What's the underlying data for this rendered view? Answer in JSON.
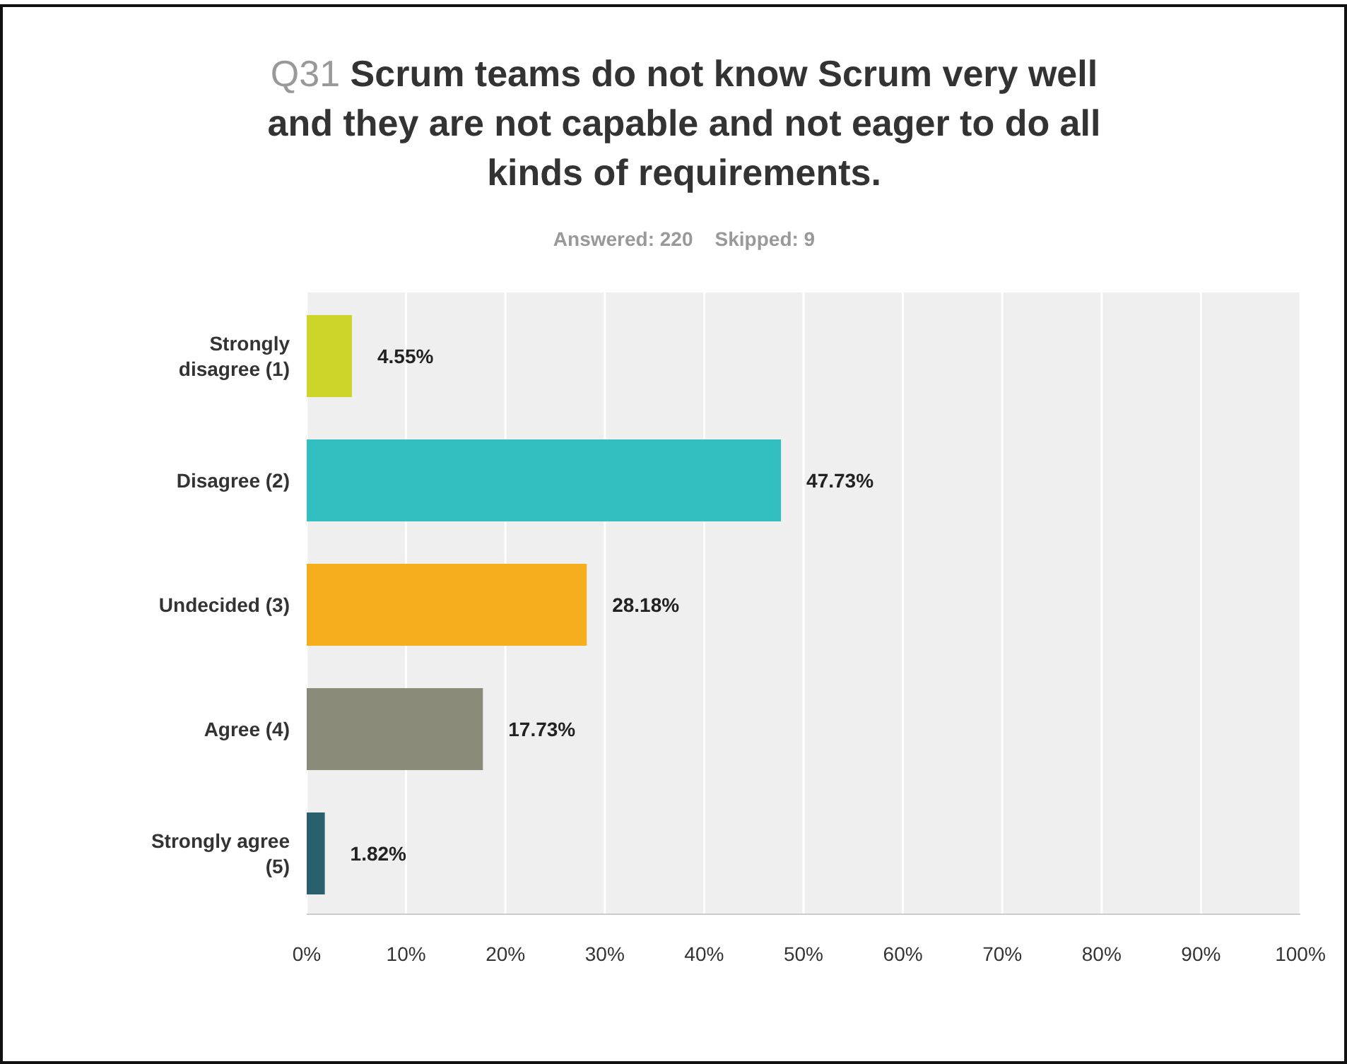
{
  "chart_data": {
    "type": "bar",
    "orientation": "horizontal",
    "title": "Q31 Scrum teams do not know Scrum very well and they are not capable and not eager to do all kinds of requirements.",
    "subtitle": "Answered: 220    Skipped: 9",
    "categories": [
      "Strongly disagree (1)",
      "Disagree (2)",
      "Undecided (3)",
      "Agree (4)",
      "Strongly agree (5)"
    ],
    "values": [
      4.55,
      47.73,
      28.18,
      17.73,
      1.82
    ],
    "value_labels": [
      "4.55%",
      "47.73%",
      "28.18%",
      "17.73%",
      "1.82%"
    ],
    "colors": [
      "#cdd42a",
      "#33bfbf",
      "#f7ae1e",
      "#8a8b78",
      "#2a5f6e"
    ],
    "xlim": [
      0,
      100
    ],
    "xticks": [
      {
        "value": 0,
        "label": "0%"
      },
      {
        "value": 10,
        "label": "10%"
      },
      {
        "value": 20,
        "label": "20%"
      },
      {
        "value": 30,
        "label": "30%"
      },
      {
        "value": 40,
        "label": "40%"
      },
      {
        "value": 50,
        "label": "50%"
      },
      {
        "value": 60,
        "label": "60%"
      },
      {
        "value": 70,
        "label": "70%"
      },
      {
        "value": 80,
        "label": "80%"
      },
      {
        "value": 90,
        "label": "90%"
      },
      {
        "value": 100,
        "label": "100%"
      }
    ],
    "grid": "x"
  }
}
